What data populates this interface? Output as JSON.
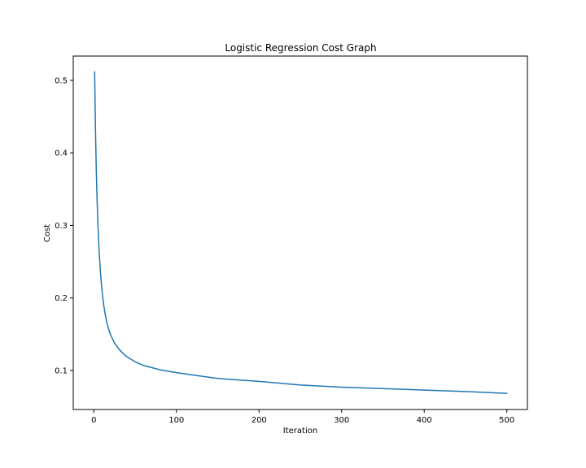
{
  "chart_data": {
    "type": "line",
    "title": "Logistic Regression Cost Graph",
    "xlabel": "Iteration",
    "ylabel": "Cost",
    "xlim": [
      -24.9,
      524.9
    ],
    "ylim": [
      0.0462,
      0.5335
    ],
    "xticks": [
      0,
      100,
      200,
      300,
      400,
      500
    ],
    "xtick_labels": [
      "0",
      "100",
      "200",
      "300",
      "400",
      "500"
    ],
    "yticks": [
      0.1,
      0.2,
      0.3,
      0.4,
      0.5
    ],
    "ytick_labels": [
      "0.1",
      "0.2",
      "0.3",
      "0.4",
      "0.5"
    ],
    "grid": false,
    "legend": "none",
    "line_color": "#1f77b4",
    "series": [
      {
        "name": "",
        "x": [
          1,
          2,
          3,
          4,
          5,
          6,
          7,
          8,
          9,
          10,
          12,
          14,
          16,
          18,
          20,
          25,
          30,
          35,
          40,
          50,
          60,
          70,
          80,
          100,
          125,
          150,
          175,
          200,
          250,
          300,
          350,
          400,
          450,
          500
        ],
        "y": [
          0.512,
          0.433,
          0.375,
          0.334,
          0.301,
          0.275,
          0.254,
          0.236,
          0.222,
          0.209,
          0.19,
          0.176,
          0.165,
          0.157,
          0.15,
          0.138,
          0.13,
          0.124,
          0.119,
          0.112,
          0.107,
          0.104,
          0.101,
          0.097,
          0.093,
          0.089,
          0.087,
          0.085,
          0.08,
          0.077,
          0.075,
          0.073,
          0.071,
          0.0685
        ]
      }
    ]
  }
}
